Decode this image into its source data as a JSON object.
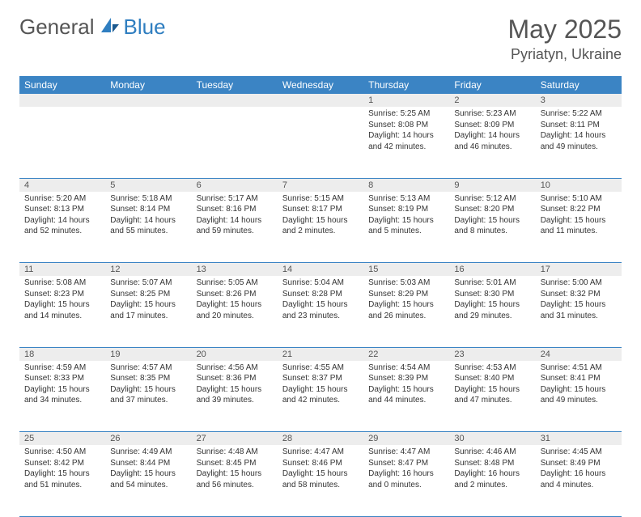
{
  "brand": {
    "general": "General",
    "blue": "Blue"
  },
  "title": "May 2025",
  "location": "Pyriatyn, Ukraine",
  "colors": {
    "header_bg": "#3b84c4",
    "header_text": "#ffffff",
    "daynum_bg": "#ededed",
    "border": "#3b84c4",
    "logo_blue": "#2f7ec0",
    "text": "#333333"
  },
  "day_headers": [
    "Sunday",
    "Monday",
    "Tuesday",
    "Wednesday",
    "Thursday",
    "Friday",
    "Saturday"
  ],
  "weeks": [
    [
      null,
      null,
      null,
      null,
      {
        "n": "1",
        "sr": "5:25 AM",
        "ss": "8:08 PM",
        "dl": "14 hours and 42 minutes."
      },
      {
        "n": "2",
        "sr": "5:23 AM",
        "ss": "8:09 PM",
        "dl": "14 hours and 46 minutes."
      },
      {
        "n": "3",
        "sr": "5:22 AM",
        "ss": "8:11 PM",
        "dl": "14 hours and 49 minutes."
      }
    ],
    [
      {
        "n": "4",
        "sr": "5:20 AM",
        "ss": "8:13 PM",
        "dl": "14 hours and 52 minutes."
      },
      {
        "n": "5",
        "sr": "5:18 AM",
        "ss": "8:14 PM",
        "dl": "14 hours and 55 minutes."
      },
      {
        "n": "6",
        "sr": "5:17 AM",
        "ss": "8:16 PM",
        "dl": "14 hours and 59 minutes."
      },
      {
        "n": "7",
        "sr": "5:15 AM",
        "ss": "8:17 PM",
        "dl": "15 hours and 2 minutes."
      },
      {
        "n": "8",
        "sr": "5:13 AM",
        "ss": "8:19 PM",
        "dl": "15 hours and 5 minutes."
      },
      {
        "n": "9",
        "sr": "5:12 AM",
        "ss": "8:20 PM",
        "dl": "15 hours and 8 minutes."
      },
      {
        "n": "10",
        "sr": "5:10 AM",
        "ss": "8:22 PM",
        "dl": "15 hours and 11 minutes."
      }
    ],
    [
      {
        "n": "11",
        "sr": "5:08 AM",
        "ss": "8:23 PM",
        "dl": "15 hours and 14 minutes."
      },
      {
        "n": "12",
        "sr": "5:07 AM",
        "ss": "8:25 PM",
        "dl": "15 hours and 17 minutes."
      },
      {
        "n": "13",
        "sr": "5:05 AM",
        "ss": "8:26 PM",
        "dl": "15 hours and 20 minutes."
      },
      {
        "n": "14",
        "sr": "5:04 AM",
        "ss": "8:28 PM",
        "dl": "15 hours and 23 minutes."
      },
      {
        "n": "15",
        "sr": "5:03 AM",
        "ss": "8:29 PM",
        "dl": "15 hours and 26 minutes."
      },
      {
        "n": "16",
        "sr": "5:01 AM",
        "ss": "8:30 PM",
        "dl": "15 hours and 29 minutes."
      },
      {
        "n": "17",
        "sr": "5:00 AM",
        "ss": "8:32 PM",
        "dl": "15 hours and 31 minutes."
      }
    ],
    [
      {
        "n": "18",
        "sr": "4:59 AM",
        "ss": "8:33 PM",
        "dl": "15 hours and 34 minutes."
      },
      {
        "n": "19",
        "sr": "4:57 AM",
        "ss": "8:35 PM",
        "dl": "15 hours and 37 minutes."
      },
      {
        "n": "20",
        "sr": "4:56 AM",
        "ss": "8:36 PM",
        "dl": "15 hours and 39 minutes."
      },
      {
        "n": "21",
        "sr": "4:55 AM",
        "ss": "8:37 PM",
        "dl": "15 hours and 42 minutes."
      },
      {
        "n": "22",
        "sr": "4:54 AM",
        "ss": "8:39 PM",
        "dl": "15 hours and 44 minutes."
      },
      {
        "n": "23",
        "sr": "4:53 AM",
        "ss": "8:40 PM",
        "dl": "15 hours and 47 minutes."
      },
      {
        "n": "24",
        "sr": "4:51 AM",
        "ss": "8:41 PM",
        "dl": "15 hours and 49 minutes."
      }
    ],
    [
      {
        "n": "25",
        "sr": "4:50 AM",
        "ss": "8:42 PM",
        "dl": "15 hours and 51 minutes."
      },
      {
        "n": "26",
        "sr": "4:49 AM",
        "ss": "8:44 PM",
        "dl": "15 hours and 54 minutes."
      },
      {
        "n": "27",
        "sr": "4:48 AM",
        "ss": "8:45 PM",
        "dl": "15 hours and 56 minutes."
      },
      {
        "n": "28",
        "sr": "4:47 AM",
        "ss": "8:46 PM",
        "dl": "15 hours and 58 minutes."
      },
      {
        "n": "29",
        "sr": "4:47 AM",
        "ss": "8:47 PM",
        "dl": "16 hours and 0 minutes."
      },
      {
        "n": "30",
        "sr": "4:46 AM",
        "ss": "8:48 PM",
        "dl": "16 hours and 2 minutes."
      },
      {
        "n": "31",
        "sr": "4:45 AM",
        "ss": "8:49 PM",
        "dl": "16 hours and 4 minutes."
      }
    ]
  ],
  "labels": {
    "sunrise": "Sunrise:",
    "sunset": "Sunset:",
    "daylight": "Daylight:"
  }
}
